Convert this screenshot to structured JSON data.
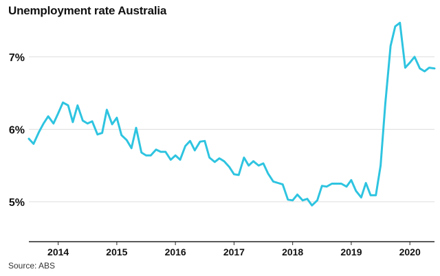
{
  "chart_data": {
    "type": "line",
    "title": "Unemployment rate Australia",
    "source": "Source: ABS",
    "xlabel": "",
    "ylabel": "",
    "ylim": [
      4.45,
      7.5
    ],
    "yticks": [
      {
        "value": 7,
        "label": "7%"
      },
      {
        "value": 6,
        "label": "6%"
      },
      {
        "value": 5,
        "label": "5%"
      }
    ],
    "xticks": [
      {
        "value": 2014.0,
        "label": "2014"
      },
      {
        "value": 2015.0,
        "label": "2015"
      },
      {
        "value": 2016.0,
        "label": "2016"
      },
      {
        "value": 2017.0,
        "label": "2017"
      },
      {
        "value": 2018.0,
        "label": "2018"
      },
      {
        "value": 2019.0,
        "label": "2019"
      },
      {
        "value": 2020.0,
        "label": "2020"
      }
    ],
    "xlim": [
      2013.5,
      2020.42
    ],
    "grid": "horizontal",
    "color": "#2ec4e0",
    "series": [
      {
        "x": [
          2013.5,
          2013.58,
          2013.67,
          2013.75,
          2013.83,
          2013.92,
          2014.0,
          2014.08,
          2014.17,
          2014.25,
          2014.33,
          2014.42,
          2014.5,
          2014.58,
          2014.67,
          2014.75,
          2014.83,
          2014.92,
          2015.0,
          2015.08,
          2015.17,
          2015.25,
          2015.33,
          2015.42,
          2015.5,
          2015.58,
          2015.67,
          2015.75,
          2015.83,
          2015.92,
          2016.0,
          2016.08,
          2016.17,
          2016.25,
          2016.33,
          2016.42,
          2016.5,
          2016.58,
          2016.67,
          2016.75,
          2016.83,
          2016.92,
          2017.0,
          2017.08,
          2017.17,
          2017.25,
          2017.33,
          2017.42,
          2017.5,
          2017.58,
          2017.67,
          2017.75,
          2017.83,
          2017.92,
          2018.0,
          2018.08,
          2018.17,
          2018.25,
          2018.33,
          2018.42,
          2018.5,
          2018.58,
          2018.67,
          2018.75,
          2018.83,
          2018.92,
          2019.0,
          2019.08,
          2019.17,
          2019.25,
          2019.33,
          2019.42,
          2019.5,
          2019.58,
          2019.67,
          2019.75,
          2019.83,
          2019.92,
          2020.0,
          2020.08,
          2020.17,
          2020.25,
          2020.33,
          2020.42
        ],
        "values": [
          5.87,
          5.8,
          5.96,
          6.08,
          6.18,
          6.08,
          6.22,
          6.37,
          6.33,
          6.1,
          6.33,
          6.12,
          6.08,
          6.11,
          5.93,
          5.95,
          6.27,
          6.07,
          6.16,
          5.92,
          5.85,
          5.74,
          6.02,
          5.68,
          5.64,
          5.64,
          5.72,
          5.69,
          5.69,
          5.58,
          5.64,
          5.58,
          5.77,
          5.84,
          5.71,
          5.83,
          5.84,
          5.61,
          5.55,
          5.6,
          5.56,
          5.48,
          5.38,
          5.37,
          5.61,
          5.5,
          5.56,
          5.5,
          5.53,
          5.39,
          5.28,
          5.26,
          5.24,
          5.03,
          5.02,
          5.1,
          5.02,
          5.04,
          4.95,
          5.02,
          5.22,
          5.21,
          5.25,
          5.25,
          5.25,
          5.21,
          5.3,
          5.15,
          5.06,
          5.26,
          5.09,
          5.09,
          5.5,
          6.35,
          7.15,
          7.42,
          7.47,
          6.85,
          6.92,
          7.0,
          6.84,
          6.8,
          6.85,
          6.84
        ]
      }
    ]
  }
}
